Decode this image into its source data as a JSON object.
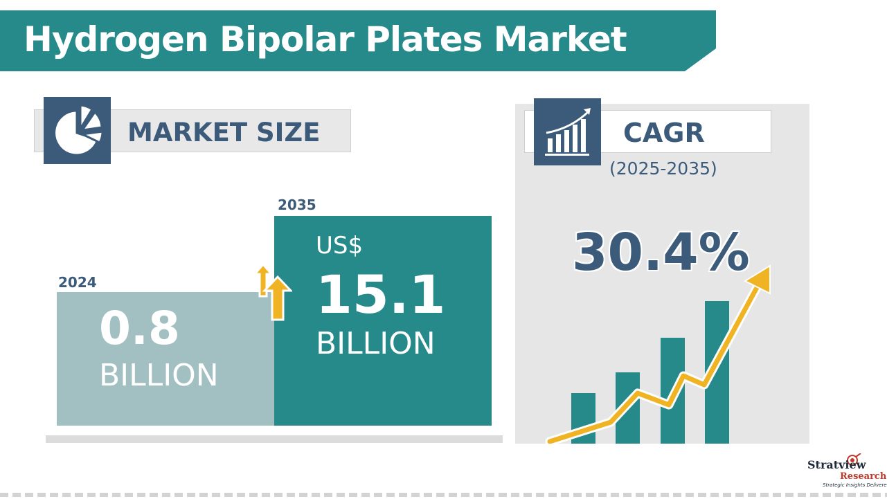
{
  "title": "Hydrogen Bipolar Plates Market",
  "colors": {
    "teal": "#268a8a",
    "navy": "#3c5a7a",
    "light_teal": "#a2bfc1",
    "gold": "#f0b323",
    "panel_gray": "#e6e6e6"
  },
  "market_size": {
    "heading": "MARKET SIZE",
    "icon": "pie-chart-icon",
    "start": {
      "year": "2024",
      "value": "0.8",
      "unit": "BILLION"
    },
    "end": {
      "year": "2035",
      "currency": "US$",
      "value": "15.1",
      "unit": "BILLION"
    },
    "growth_icon": "up-arrows-icon"
  },
  "cagr": {
    "heading": "CAGR",
    "period": "(2025-2035)",
    "value": "30.4%",
    "icon": "growth-bar-chart-icon"
  },
  "logo": {
    "brand": "Stratview",
    "sub": "Research",
    "tagline": "Strategic Insights Delivered"
  }
}
